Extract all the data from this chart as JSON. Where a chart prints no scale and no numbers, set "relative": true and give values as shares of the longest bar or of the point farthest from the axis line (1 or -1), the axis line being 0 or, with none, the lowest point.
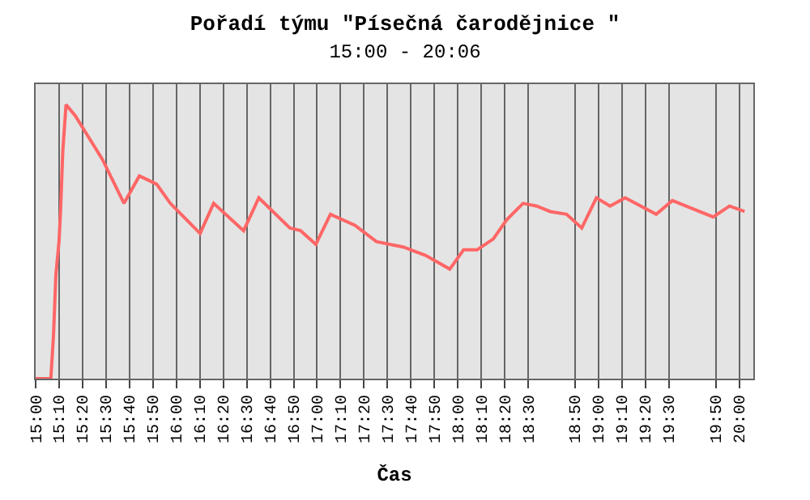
{
  "chart_data": {
    "type": "line",
    "title": "Pořadí týmu \"Písečná čarodějnice \"",
    "subtitle": "15:00 - 20:06",
    "xlabel": "Čas",
    "relative": true,
    "x": [
      15.0,
      15.108,
      15.127,
      15.144,
      15.166,
      15.177,
      15.193,
      15.216,
      15.281,
      15.378,
      15.475,
      15.628,
      15.737,
      15.86,
      15.957,
      16.111,
      16.169,
      16.265,
      16.478,
      16.586,
      16.806,
      16.883,
      16.991,
      17.095,
      17.269,
      17.422,
      17.616,
      17.77,
      17.943,
      18.041,
      18.137,
      18.252,
      18.348,
      18.464,
      18.561,
      18.657,
      18.773,
      18.881,
      18.985,
      19.082,
      19.19,
      19.41,
      19.525,
      19.815,
      19.931,
      20.038
    ],
    "series": [
      {
        "color": "#ff6666",
        "values": [
          0,
          0,
          0.16,
          0.38,
          0.5,
          0.61,
          0.83,
          1,
          0.96,
          0.88,
          0.8,
          0.64,
          0.74,
          0.71,
          0.64,
          0.56,
          0.53,
          0.64,
          0.54,
          0.66,
          0.55,
          0.54,
          0.49,
          0.6,
          0.56,
          0.5,
          0.48,
          0.45,
          0.4,
          0.47,
          0.47,
          0.51,
          0.58,
          0.64,
          0.63,
          0.61,
          0.6,
          0.55,
          0.66,
          0.63,
          0.66,
          0.6,
          0.65,
          0.59,
          0.63,
          0.61
        ]
      }
    ],
    "xlim": [
      15.0,
      20.1
    ],
    "xticks": [
      {
        "value": 15.0,
        "label": "15:00"
      },
      {
        "value": 15.1667,
        "label": "15:10"
      },
      {
        "value": 15.3333,
        "label": "15:20"
      },
      {
        "value": 15.5,
        "label": "15:30"
      },
      {
        "value": 15.6667,
        "label": "15:40"
      },
      {
        "value": 15.8333,
        "label": "15:50"
      },
      {
        "value": 16.0,
        "label": "16:00"
      },
      {
        "value": 16.1667,
        "label": "16:10"
      },
      {
        "value": 16.3333,
        "label": "16:20"
      },
      {
        "value": 16.5,
        "label": "16:30"
      },
      {
        "value": 16.6667,
        "label": "16:40"
      },
      {
        "value": 16.8333,
        "label": "16:50"
      },
      {
        "value": 17.0,
        "label": "17:00"
      },
      {
        "value": 17.1667,
        "label": "17:10"
      },
      {
        "value": 17.3333,
        "label": "17:20"
      },
      {
        "value": 17.5,
        "label": "17:30"
      },
      {
        "value": 17.6667,
        "label": "17:40"
      },
      {
        "value": 17.8333,
        "label": "17:50"
      },
      {
        "value": 18.0,
        "label": "18:00"
      },
      {
        "value": 18.1667,
        "label": "18:10"
      },
      {
        "value": 18.3333,
        "label": "18:20"
      },
      {
        "value": 18.5,
        "label": "18:30"
      },
      {
        "value": 18.8333,
        "label": "18:50"
      },
      {
        "value": 19.0,
        "label": "19:00"
      },
      {
        "value": 19.1667,
        "label": "19:10"
      },
      {
        "value": 19.3333,
        "label": "19:20"
      },
      {
        "value": 19.5,
        "label": "19:30"
      },
      {
        "value": 19.8333,
        "label": "19:50"
      },
      {
        "value": 20.0,
        "label": "20:00"
      }
    ],
    "grid": "x",
    "marker": "none",
    "line_style": "solid"
  }
}
